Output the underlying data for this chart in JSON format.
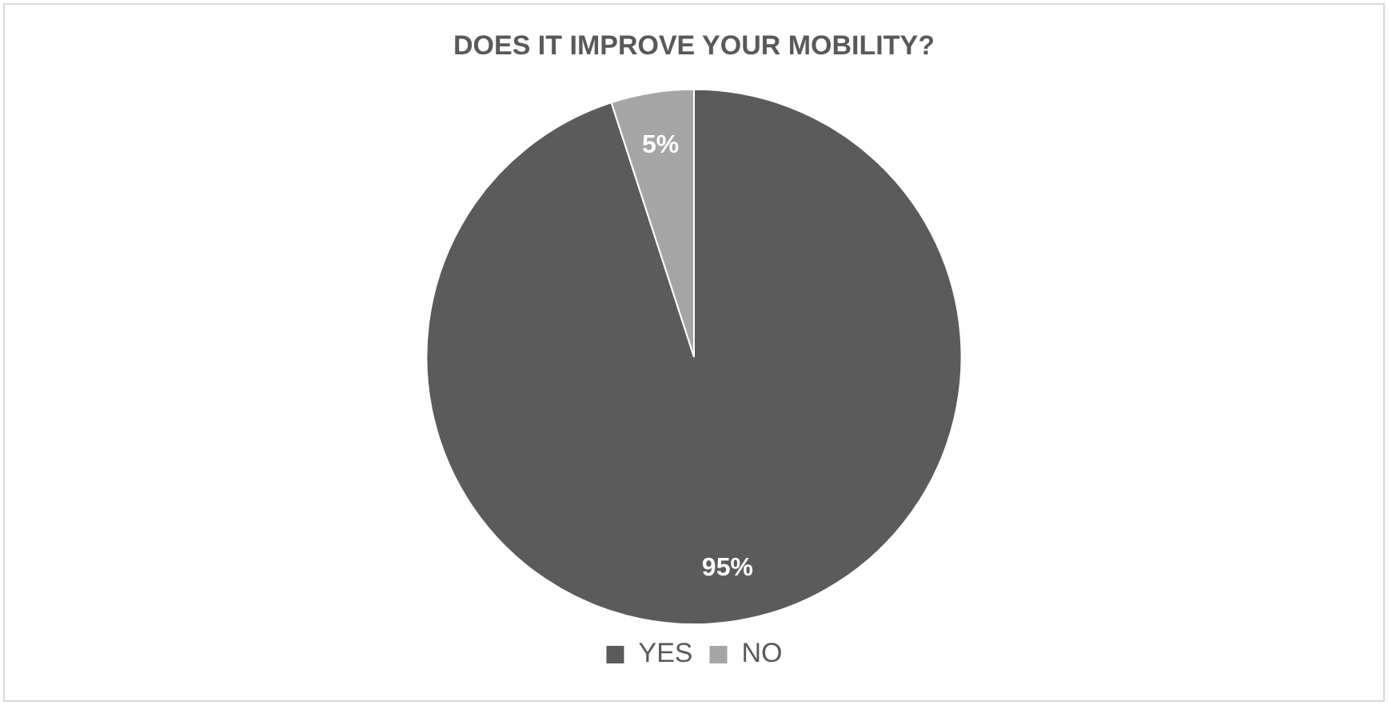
{
  "chart_data": {
    "type": "pie",
    "title": "DOES IT IMPROVE YOUR MOBILITY?",
    "categories": [
      "YES",
      "NO"
    ],
    "values": [
      95,
      5
    ],
    "colors": [
      "#5b5b5b",
      "#a5a5a5"
    ],
    "value_labels": [
      "95%",
      "5%"
    ],
    "legend": "bottom"
  }
}
